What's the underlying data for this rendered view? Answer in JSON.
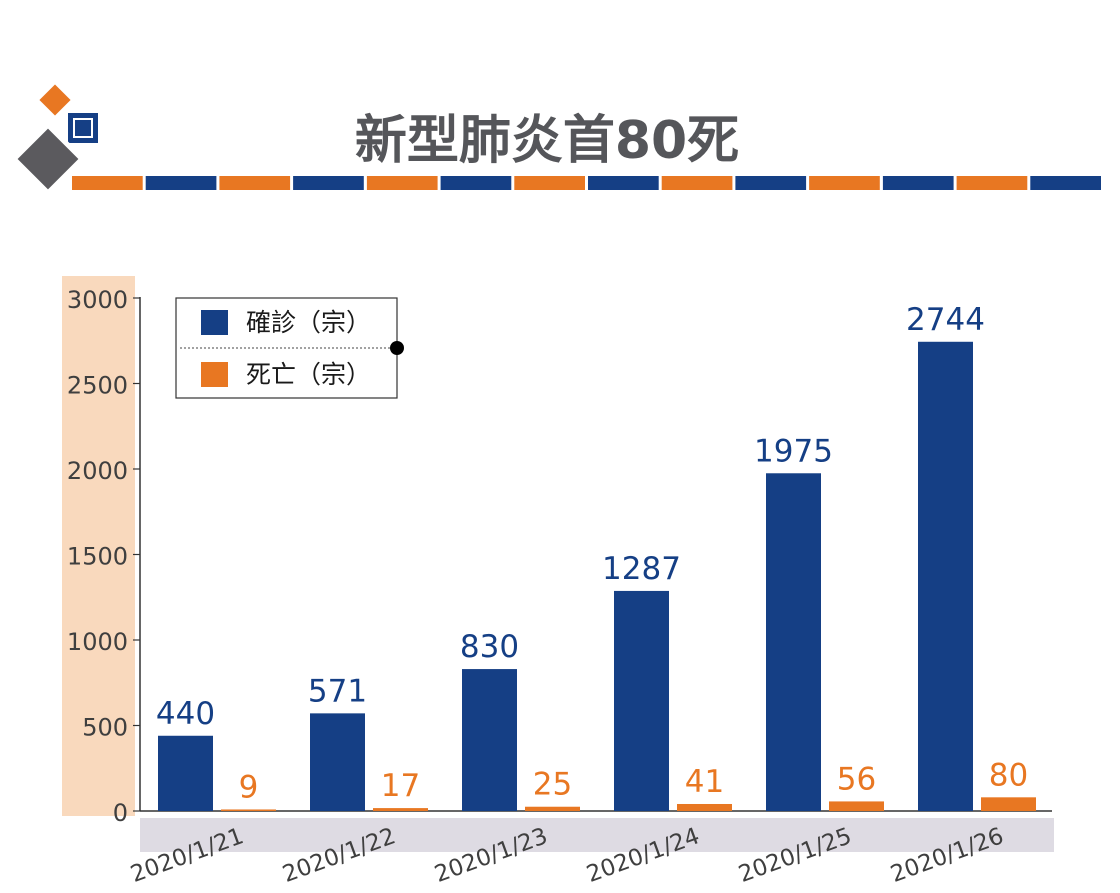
{
  "colors": {
    "confirmed": "#153f85",
    "deaths": "#e87722",
    "axis_band": "#f9d9bd",
    "date_band": "#dedbe3",
    "title_text": "#55565a",
    "tick_text": "#3f3f3f",
    "grey_diamond": "#5b5a5e"
  },
  "title": "新型肺炎首80死",
  "legend": {
    "confirmed_label": "確診（宗）",
    "deaths_label": "死亡（宗）"
  },
  "chart_data": {
    "type": "bar",
    "title": "新型肺炎首80死",
    "categories": [
      "2020/1/21",
      "2020/1/22",
      "2020/1/23",
      "2020/1/24",
      "2020/1/25",
      "2020/1/26"
    ],
    "series": [
      {
        "name": "確診（宗）",
        "values": [
          440,
          571,
          830,
          1287,
          1975,
          2744
        ]
      },
      {
        "name": "死亡（宗）",
        "values": [
          9,
          17,
          25,
          41,
          56,
          80
        ]
      }
    ],
    "yticks": [
      "0",
      "500",
      "1000",
      "1500",
      "2000",
      "2500",
      "3000"
    ],
    "ylim": [
      0,
      3000
    ],
    "legend_position": "top-left",
    "grid": false
  }
}
